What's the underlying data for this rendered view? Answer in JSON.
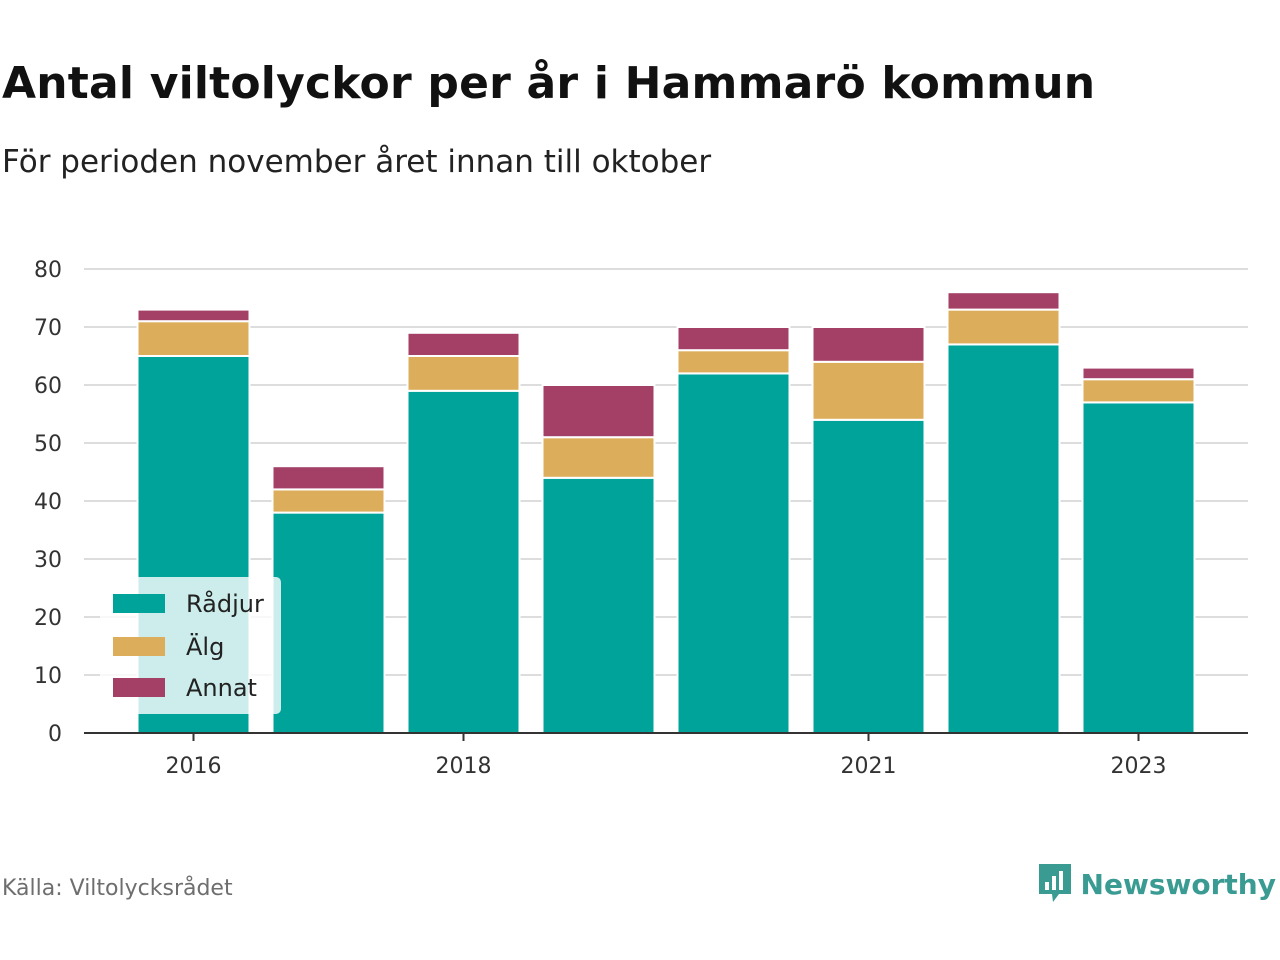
{
  "title": "Antal viltolyckor per år i Hammarö kommun",
  "subtitle": "För perioden november året innan till oktober",
  "source": "Källa: Viltolycksrådet",
  "brand": {
    "name": "Newsworthy",
    "icon": "bar-chart-logo-icon",
    "color": "#3a9b93"
  },
  "chart_data": {
    "type": "bar",
    "stacked": true,
    "categories": [
      "2016",
      "2017",
      "2018",
      "2019",
      "2020",
      "2021",
      "2022",
      "2023"
    ],
    "x_tick_labels": [
      "2016",
      "2018",
      "2021",
      "2023"
    ],
    "series": [
      {
        "name": "Rådjur",
        "color": "#00a39a",
        "values": [
          65,
          38,
          59,
          44,
          62,
          54,
          67,
          57
        ]
      },
      {
        "name": "Älg",
        "color": "#dcae5c",
        "values": [
          6,
          4,
          6,
          7,
          4,
          10,
          6,
          4
        ]
      },
      {
        "name": "Annat",
        "color": "#a43f66",
        "values": [
          2,
          4,
          4,
          9,
          4,
          6,
          3,
          2
        ]
      }
    ],
    "ylim": [
      0,
      80
    ],
    "yticks": [
      0,
      10,
      20,
      30,
      40,
      50,
      60,
      70,
      80
    ],
    "grid": true,
    "legend": "bottom-left",
    "xlabel": "",
    "ylabel": ""
  }
}
